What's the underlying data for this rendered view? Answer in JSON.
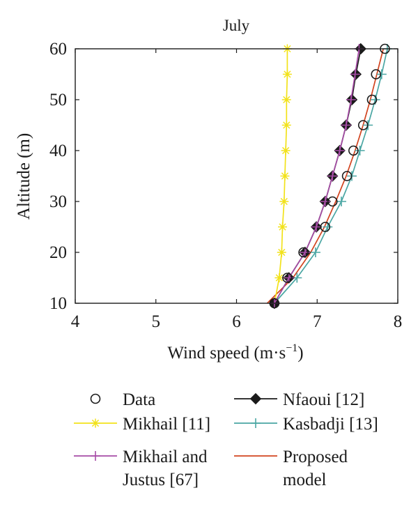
{
  "chart_data": {
    "type": "line",
    "title": "July",
    "xlabel": "Wind speed (m·s",
    "xlabel_sup": "−1",
    "xlabel_close": ")",
    "ylabel": "Altitude (m)",
    "xlim": [
      4,
      8
    ],
    "ylim": [
      10,
      60
    ],
    "xticks": [
      4,
      5,
      6,
      7,
      8
    ],
    "yticks": [
      10,
      20,
      30,
      40,
      50,
      60
    ],
    "grid": false,
    "legend_position": "below",
    "series": [
      {
        "name": "Data",
        "style": "markers",
        "marker": "circle",
        "color": "#1a1a1a",
        "points": [
          {
            "x": 6.47,
            "y": 10
          },
          {
            "x": 6.63,
            "y": 15
          },
          {
            "x": 6.83,
            "y": 20
          },
          {
            "x": 7.1,
            "y": 25
          },
          {
            "x": 7.19,
            "y": 30
          },
          {
            "x": 7.37,
            "y": 35
          },
          {
            "x": 7.45,
            "y": 40
          },
          {
            "x": 7.57,
            "y": 45
          },
          {
            "x": 7.68,
            "y": 50
          },
          {
            "x": 7.73,
            "y": 55
          },
          {
            "x": 7.84,
            "y": 60
          }
        ]
      },
      {
        "name": "Nfaoui [12]",
        "style": "line+markers",
        "marker": "diamond",
        "color": "#1a1a1a",
        "points": [
          {
            "x": 6.47,
            "y": 10
          },
          {
            "x": 6.65,
            "y": 15
          },
          {
            "x": 6.85,
            "y": 20
          },
          {
            "x": 6.99,
            "y": 25
          },
          {
            "x": 7.1,
            "y": 30
          },
          {
            "x": 7.19,
            "y": 35
          },
          {
            "x": 7.28,
            "y": 40
          },
          {
            "x": 7.36,
            "y": 45
          },
          {
            "x": 7.43,
            "y": 50
          },
          {
            "x": 7.48,
            "y": 55
          },
          {
            "x": 7.54,
            "y": 60
          }
        ]
      },
      {
        "name": "Mikhail [11]",
        "style": "line+markers",
        "marker": "star",
        "color": "#f2e21a",
        "points": [
          {
            "x": 6.47,
            "y": 10
          },
          {
            "x": 6.53,
            "y": 15
          },
          {
            "x": 6.56,
            "y": 20
          },
          {
            "x": 6.57,
            "y": 25
          },
          {
            "x": 6.59,
            "y": 30
          },
          {
            "x": 6.6,
            "y": 35
          },
          {
            "x": 6.61,
            "y": 40
          },
          {
            "x": 6.62,
            "y": 45
          },
          {
            "x": 6.62,
            "y": 50
          },
          {
            "x": 6.63,
            "y": 55
          },
          {
            "x": 6.63,
            "y": 60
          }
        ]
      },
      {
        "name": "Kasbadji [13]",
        "style": "line+markers",
        "marker": "plus",
        "color": "#4aa6a3",
        "points": [
          {
            "x": 6.47,
            "y": 10
          },
          {
            "x": 6.75,
            "y": 15
          },
          {
            "x": 6.98,
            "y": 20
          },
          {
            "x": 7.13,
            "y": 25
          },
          {
            "x": 7.3,
            "y": 30
          },
          {
            "x": 7.43,
            "y": 35
          },
          {
            "x": 7.53,
            "y": 40
          },
          {
            "x": 7.63,
            "y": 45
          },
          {
            "x": 7.72,
            "y": 50
          },
          {
            "x": 7.8,
            "y": 55
          },
          {
            "x": 7.87,
            "y": 60
          }
        ]
      },
      {
        "name": "Mikhail and Justus [67]",
        "name_lines": [
          "Mikhail and",
          "Justus [67]"
        ],
        "style": "line+markers",
        "marker": "plus",
        "color": "#a64ca6",
        "points": [
          {
            "x": 6.47,
            "y": 10
          },
          {
            "x": 6.65,
            "y": 15
          },
          {
            "x": 6.85,
            "y": 20
          },
          {
            "x": 6.99,
            "y": 25
          },
          {
            "x": 7.1,
            "y": 30
          },
          {
            "x": 7.19,
            "y": 35
          },
          {
            "x": 7.28,
            "y": 40
          },
          {
            "x": 7.36,
            "y": 45
          },
          {
            "x": 7.42,
            "y": 50
          },
          {
            "x": 7.47,
            "y": 55
          },
          {
            "x": 7.52,
            "y": 60
          }
        ]
      },
      {
        "name": "Proposed model",
        "name_lines": [
          "Proposed",
          "model"
        ],
        "style": "line",
        "marker": "none",
        "color": "#d2441f",
        "points": [
          {
            "x": 6.38,
            "y": 10
          },
          {
            "x": 6.7,
            "y": 15
          },
          {
            "x": 6.92,
            "y": 20
          },
          {
            "x": 7.09,
            "y": 25
          },
          {
            "x": 7.23,
            "y": 30
          },
          {
            "x": 7.36,
            "y": 35
          },
          {
            "x": 7.47,
            "y": 40
          },
          {
            "x": 7.57,
            "y": 45
          },
          {
            "x": 7.66,
            "y": 50
          },
          {
            "x": 7.74,
            "y": 55
          },
          {
            "x": 7.82,
            "y": 60
          }
        ]
      }
    ]
  }
}
